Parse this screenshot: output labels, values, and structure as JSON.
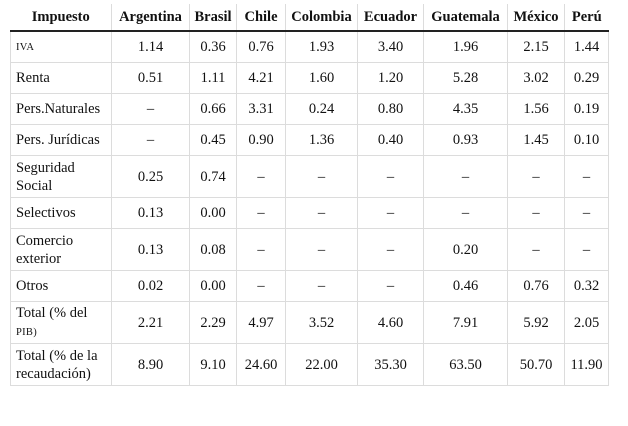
{
  "table": {
    "headers": [
      "Impuesto",
      "Argentina",
      "Brasil",
      "Chile",
      "Colombia",
      "Ecuador",
      "Guatemala",
      "México",
      "Perú"
    ],
    "rows": [
      {
        "label_lines": [
          "IVA"
        ],
        "values": [
          "1.14",
          "0.36",
          "0.76",
          "1.93",
          "3.40",
          "1.96",
          "2.15",
          "1.44"
        ]
      },
      {
        "label_lines": [
          "Renta"
        ],
        "values": [
          "0.51",
          "1.11",
          "4.21",
          "1.60",
          "1.20",
          "5.28",
          "3.02",
          "0.29"
        ]
      },
      {
        "label_lines": [
          "Pers.Naturales"
        ],
        "values": [
          "–",
          "0.66",
          "3.31",
          "0.24",
          "0.80",
          "4.35",
          "1.56",
          "0.19"
        ]
      },
      {
        "label_lines": [
          "Pers. Jurídicas"
        ],
        "values": [
          "–",
          "0.45",
          "0.90",
          "1.36",
          "0.40",
          "0.93",
          "1.45",
          "0.10"
        ]
      },
      {
        "label_lines": [
          "Seguridad",
          "Social"
        ],
        "values": [
          "0.25",
          "0.74",
          "–",
          "–",
          "–",
          "–",
          "–",
          "–"
        ]
      },
      {
        "label_lines": [
          "Selectivos"
        ],
        "values": [
          "0.13",
          "0.00",
          "–",
          "–",
          "–",
          "–",
          "–",
          "–"
        ]
      },
      {
        "label_lines": [
          "Comercio",
          "exterior"
        ],
        "values": [
          "0.13",
          "0.08",
          "–",
          "–",
          "–",
          "0.20",
          "–",
          "–"
        ]
      },
      {
        "label_lines": [
          "Otros"
        ],
        "values": [
          "0.02",
          "0.00",
          "–",
          "–",
          "–",
          "0.46",
          "0.76",
          "0.32"
        ]
      },
      {
        "label_lines": [
          "Total (% del",
          "PIB)"
        ],
        "values": [
          "2.21",
          "2.29",
          "4.97",
          "3.52",
          "4.60",
          "7.91",
          "5.92",
          "2.05"
        ]
      },
      {
        "label_lines": [
          "Total (% de la",
          "recaudación)"
        ],
        "values": [
          "8.90",
          "9.10",
          "24.60",
          "22.00",
          "35.30",
          "63.50",
          "50.70",
          "11.90"
        ]
      }
    ]
  }
}
